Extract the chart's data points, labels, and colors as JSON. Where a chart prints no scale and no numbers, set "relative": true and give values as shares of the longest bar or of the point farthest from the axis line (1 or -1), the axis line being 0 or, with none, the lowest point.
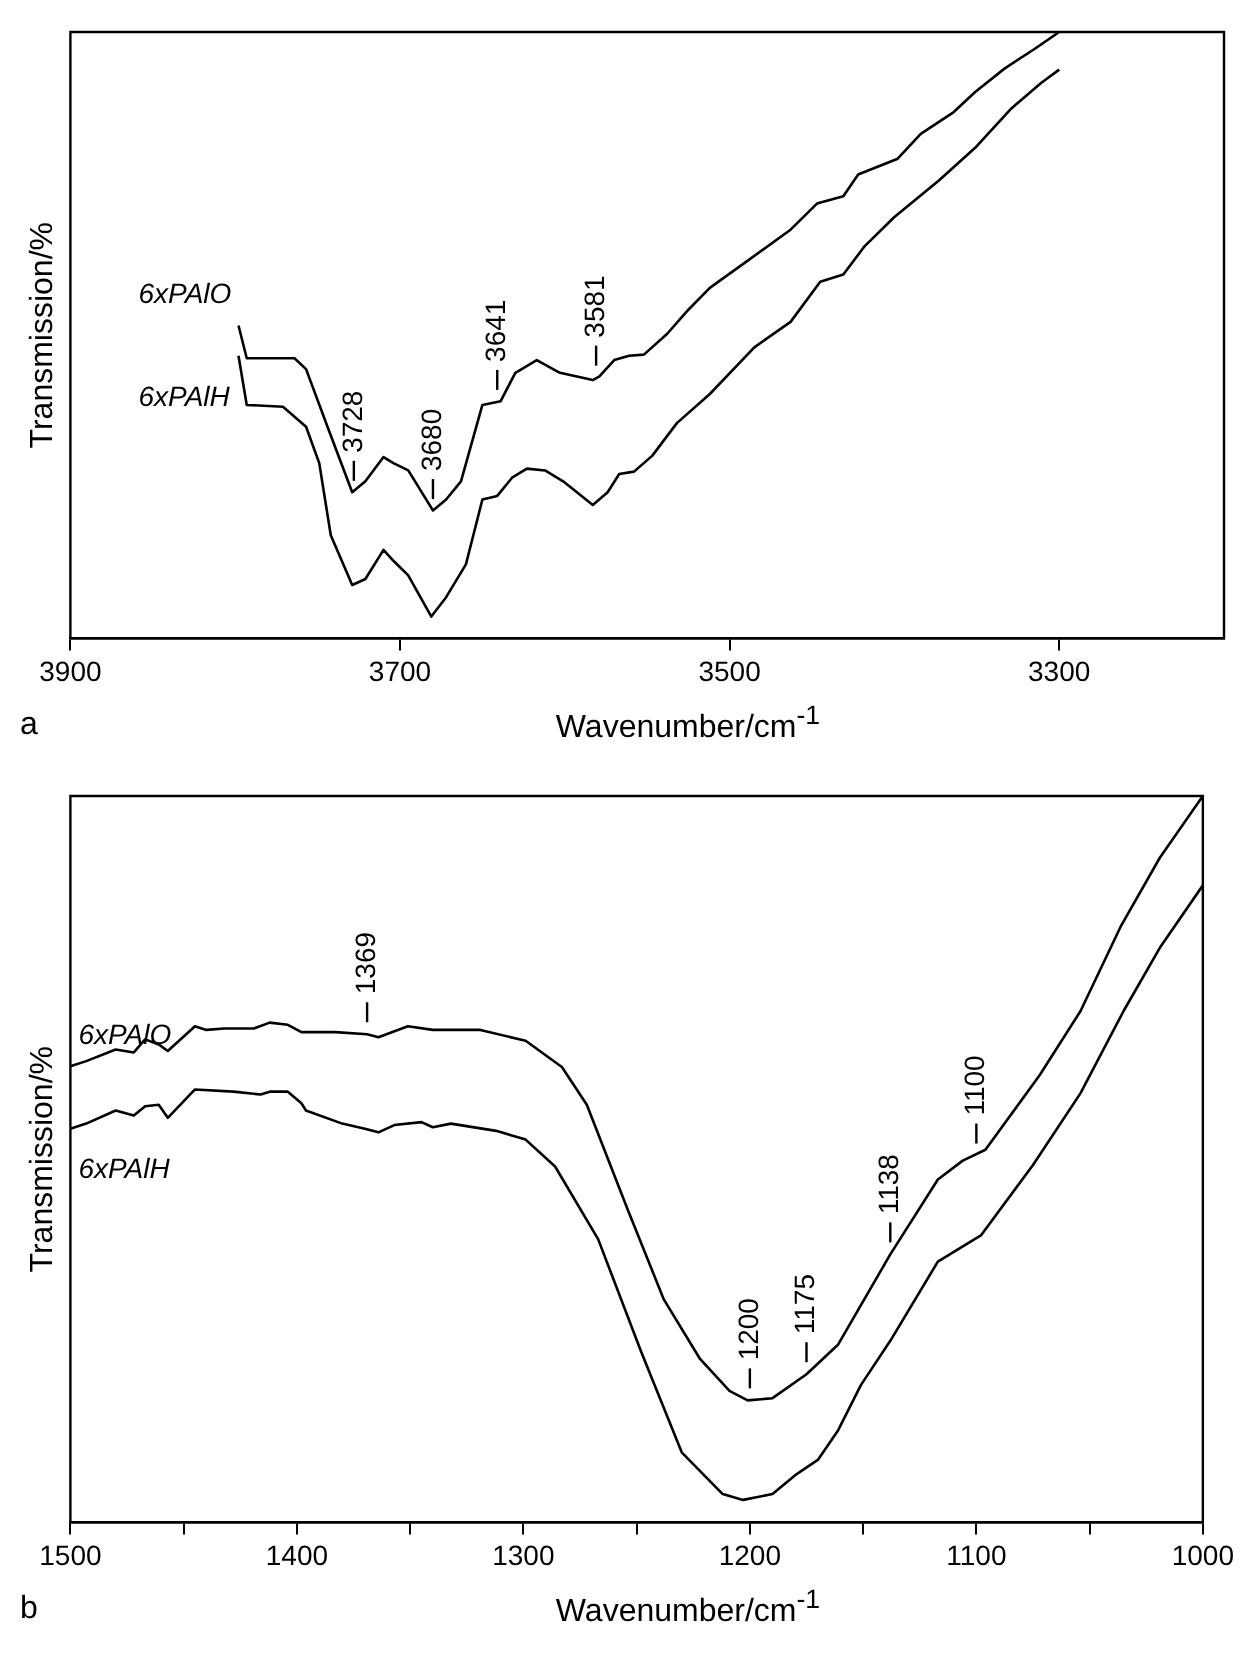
{
  "chart_data": [
    {
      "type": "line",
      "relative": true,
      "xlabel": "Wavenumber/cm$^{-1}$",
      "ylabel": "Transmission/%",
      "xlim": [
        3900,
        3200
      ],
      "xticks": [
        3900,
        3700,
        3500,
        3300
      ],
      "legend": false,
      "series": [
        {
          "name": "6xPAlO",
          "color": "#000000",
          "x": [
            3798,
            3793,
            3764,
            3757,
            3744,
            3729,
            3721,
            3710,
            3704,
            3695,
            3680,
            3672,
            3663,
            3650,
            3639,
            3630,
            3617,
            3603,
            3583,
            3579,
            3570,
            3561,
            3552,
            3538,
            3525,
            3512,
            3489,
            3463,
            3447,
            3431,
            3422,
            3398,
            3384,
            3364,
            3351,
            3333,
            3315,
            3300
          ],
          "values": [
            0.516,
            0.462,
            0.462,
            0.444,
            0.349,
            0.241,
            0.259,
            0.299,
            0.289,
            0.277,
            0.211,
            0.229,
            0.259,
            0.385,
            0.391,
            0.438,
            0.459,
            0.438,
            0.426,
            0.432,
            0.459,
            0.466,
            0.468,
            0.502,
            0.542,
            0.578,
            0.623,
            0.674,
            0.717,
            0.729,
            0.765,
            0.791,
            0.832,
            0.868,
            0.901,
            0.94,
            0.972,
            1.0
          ]
        },
        {
          "name": "6xPAlH",
          "color": "#000000",
          "x": [
            3798,
            3793,
            3771,
            3757,
            3749,
            3742,
            3729,
            3721,
            3710,
            3704,
            3695,
            3681,
            3672,
            3660,
            3650,
            3641,
            3632,
            3623,
            3612,
            3601,
            3583,
            3574,
            3567,
            3558,
            3547,
            3532,
            3512,
            3485,
            3463,
            3445,
            3431,
            3418,
            3400,
            3373,
            3351,
            3329,
            3311,
            3300
          ],
          "values": [
            0.466,
            0.385,
            0.382,
            0.349,
            0.289,
            0.17,
            0.088,
            0.098,
            0.146,
            0.128,
            0.104,
            0.036,
            0.068,
            0.122,
            0.229,
            0.235,
            0.265,
            0.28,
            0.277,
            0.259,
            0.22,
            0.241,
            0.271,
            0.275,
            0.301,
            0.355,
            0.403,
            0.48,
            0.522,
            0.588,
            0.6,
            0.647,
            0.695,
            0.755,
            0.809,
            0.874,
            0.916,
            0.938
          ]
        }
      ],
      "annotations": [
        "a",
        {
          "text": "3728",
          "x": 3728,
          "y": 0.24
        },
        {
          "text": "3680",
          "x": 3680,
          "y": 0.21
        },
        {
          "text": "3641",
          "x": 3641,
          "y": 0.39
        },
        {
          "text": "3581",
          "x": 3581,
          "y": 0.43
        }
      ]
    },
    {
      "type": "line",
      "relative": true,
      "xlabel": "Wavenumber/cm$^{-1}$",
      "ylabel": "Transmission/%",
      "xlim": [
        1500,
        1000
      ],
      "xticks": [
        1500,
        {
          "value": 1450,
          "label": null
        },
        1400,
        {
          "value": 1350,
          "label": null
        },
        1300,
        {
          "value": 1250,
          "label": null
        },
        1200,
        {
          "value": 1150,
          "label": null
        },
        1100,
        {
          "value": 1050,
          "label": null
        },
        1000
      ],
      "legend": false,
      "series": [
        {
          "name": "6xPAlO",
          "color": "#000000",
          "x": [
            1500,
            1493,
            1480,
            1472,
            1467,
            1461,
            1457,
            1445,
            1440,
            1432,
            1419,
            1412,
            1404,
            1398,
            1383,
            1369,
            1364,
            1351,
            1340,
            1319,
            1299,
            1283,
            1272,
            1254,
            1238,
            1222,
            1209,
            1201,
            1190,
            1175,
            1161,
            1138,
            1117,
            1106,
            1096,
            1072,
            1054,
            1036,
            1019,
            1000
          ],
          "values": [
            0.628,
            0.635,
            0.651,
            0.647,
            0.665,
            0.658,
            0.649,
            0.683,
            0.678,
            0.68,
            0.68,
            0.688,
            0.685,
            0.675,
            0.675,
            0.672,
            0.668,
            0.683,
            0.678,
            0.678,
            0.663,
            0.627,
            0.575,
            0.431,
            0.307,
            0.225,
            0.181,
            0.168,
            0.171,
            0.204,
            0.245,
            0.369,
            0.472,
            0.498,
            0.513,
            0.616,
            0.704,
            0.822,
            0.915,
            1.0
          ]
        },
        {
          "name": "6xPAlH",
          "color": "#000000",
          "x": [
            1500,
            1493,
            1480,
            1472,
            1467,
            1461,
            1457,
            1445,
            1428,
            1416,
            1412,
            1404,
            1398,
            1396,
            1380,
            1370,
            1364,
            1357,
            1345,
            1340,
            1332,
            1312,
            1299,
            1286,
            1267,
            1248,
            1230,
            1212,
            1203,
            1190,
            1180,
            1170,
            1161,
            1151,
            1138,
            1117,
            1098,
            1075,
            1054,
            1035,
            1019,
            1000
          ],
          "values": [
            0.542,
            0.549,
            0.567,
            0.56,
            0.573,
            0.575,
            0.557,
            0.596,
            0.593,
            0.589,
            0.593,
            0.593,
            0.577,
            0.567,
            0.549,
            0.542,
            0.537,
            0.547,
            0.551,
            0.544,
            0.549,
            0.539,
            0.527,
            0.49,
            0.39,
            0.235,
            0.096,
            0.039,
            0.031,
            0.039,
            0.065,
            0.086,
            0.127,
            0.189,
            0.25,
            0.359,
            0.395,
            0.492,
            0.591,
            0.704,
            0.791,
            0.877
          ]
        }
      ],
      "annotations": [
        "b",
        {
          "text": "1369",
          "x": 1369,
          "y": 0.672
        },
        {
          "text": "1200",
          "x": 1200,
          "y": 0.168
        },
        {
          "text": "1175",
          "x": 1175,
          "y": 0.204
        },
        {
          "text": "1138",
          "x": 1138,
          "y": 0.369
        },
        {
          "text": "1100",
          "x": 1100,
          "y": 0.505
        }
      ]
    }
  ]
}
